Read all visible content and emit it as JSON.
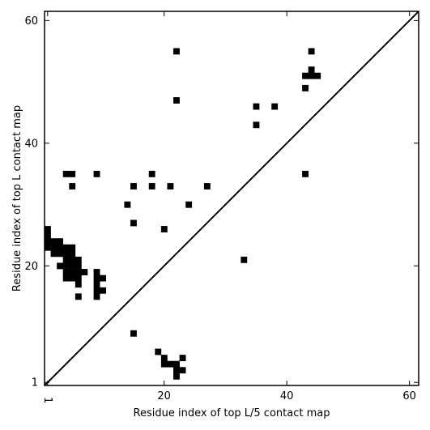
{
  "chart_data": {
    "type": "scatter",
    "title": "",
    "xlabel": "Residue index of top L/5 contact map",
    "ylabel": "Residue index of top L contact map",
    "xlim": [
      0.5,
      61.5
    ],
    "ylim": [
      0.5,
      61.5
    ],
    "xticks": [
      {
        "value": 1,
        "label": "1"
      },
      {
        "value": 20,
        "label": "20"
      },
      {
        "value": 40,
        "label": "40"
      },
      {
        "value": 60,
        "label": "60"
      }
    ],
    "yticks": [
      {
        "value": 1,
        "label": "1"
      },
      {
        "value": 20,
        "label": "20"
      },
      {
        "value": 40,
        "label": "40"
      },
      {
        "value": 60,
        "label": "60"
      }
    ],
    "grid": false,
    "diagonal_line": {
      "from": [
        0.5,
        0.5
      ],
      "to": [
        61.5,
        61.5
      ]
    },
    "series": [
      {
        "points": [
          [
            1,
            26
          ],
          [
            1,
            25
          ],
          [
            1,
            24
          ],
          [
            1,
            23
          ],
          [
            2,
            24
          ],
          [
            2,
            23
          ],
          [
            2,
            22
          ],
          [
            3,
            24
          ],
          [
            3,
            23
          ],
          [
            3,
            22
          ],
          [
            3,
            20
          ],
          [
            4,
            23
          ],
          [
            4,
            22
          ],
          [
            4,
            21
          ],
          [
            4,
            20
          ],
          [
            4,
            19
          ],
          [
            4,
            18
          ],
          [
            5,
            23
          ],
          [
            5,
            22
          ],
          [
            5,
            21
          ],
          [
            5,
            20
          ],
          [
            5,
            19
          ],
          [
            5,
            18
          ],
          [
            6,
            21
          ],
          [
            6,
            20
          ],
          [
            6,
            19
          ],
          [
            6,
            18
          ],
          [
            6,
            17
          ],
          [
            6,
            15
          ],
          [
            7,
            19
          ],
          [
            9,
            19
          ],
          [
            9,
            18
          ],
          [
            9,
            17
          ],
          [
            9,
            16
          ],
          [
            9,
            15
          ],
          [
            10,
            18
          ],
          [
            10,
            16
          ],
          [
            4,
            35
          ],
          [
            5,
            35
          ],
          [
            5,
            33
          ],
          [
            9,
            35
          ],
          [
            14,
            30
          ],
          [
            15,
            33
          ],
          [
            15,
            27
          ],
          [
            15,
            9
          ],
          [
            18,
            35
          ],
          [
            18,
            33
          ],
          [
            20,
            26
          ],
          [
            21,
            33
          ],
          [
            22,
            55
          ],
          [
            22,
            47
          ],
          [
            24,
            30
          ],
          [
            27,
            33
          ],
          [
            33,
            21
          ],
          [
            35,
            46
          ],
          [
            35,
            43
          ],
          [
            38,
            46
          ],
          [
            43,
            51
          ],
          [
            43,
            49
          ],
          [
            43,
            35
          ],
          [
            44,
            55
          ],
          [
            44,
            52
          ],
          [
            44,
            51
          ],
          [
            45,
            51
          ],
          [
            19,
            6
          ],
          [
            20,
            5
          ],
          [
            20,
            4
          ],
          [
            21,
            4
          ],
          [
            22,
            4
          ],
          [
            22,
            3
          ],
          [
            22,
            2
          ],
          [
            23,
            5
          ],
          [
            23,
            3
          ]
        ]
      }
    ]
  }
}
